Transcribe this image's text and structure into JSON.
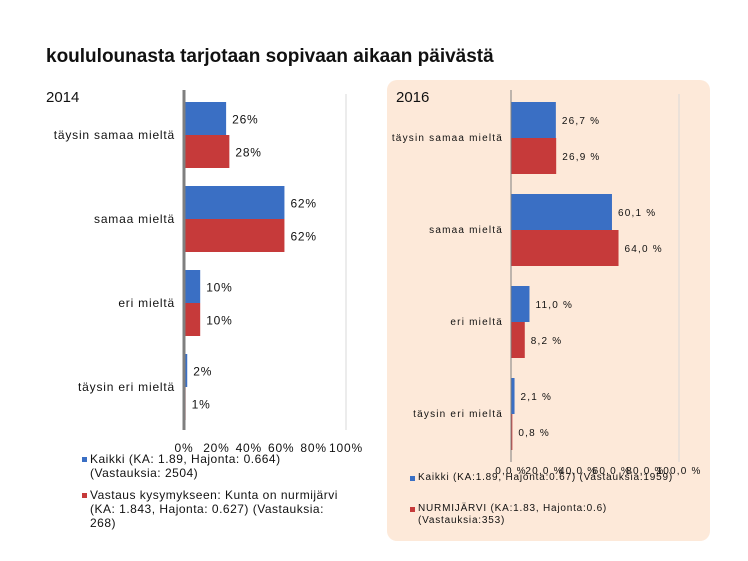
{
  "title": "koululounasta tarjotaan sopivaan aikaan päivästä",
  "colors": {
    "series1": "#3a6fc4",
    "series2": "#c63a3a",
    "panel_bg": "#fde9d9",
    "axis": "#7f7f7f",
    "grid": "#d9d9d9"
  },
  "chart_data": [
    {
      "type": "bar",
      "orientation": "horizontal",
      "title": "2014",
      "categories": [
        "täysin samaa mieltä",
        "samaa mieltä",
        "eri mieltä",
        "täysin eri mieltä"
      ],
      "series": [
        {
          "name": "Kaikki (KA: 1.89, Hajonta: 0.664) (Vastauksia: 2504)",
          "values": [
            26,
            62,
            10,
            2
          ],
          "labels": [
            "26%",
            "62%",
            "10%",
            "2%"
          ]
        },
        {
          "name": "Vastaus kysymykseen: Kunta on nurmijärvi (KA: 1.843, Hajonta: 0.627) (Vastauksia: 268)",
          "values": [
            28,
            62,
            10,
            1
          ],
          "labels": [
            "28%",
            "62%",
            "10%",
            "1%"
          ]
        }
      ],
      "xticks": [
        "0%",
        "20%",
        "40%",
        "60%",
        "80%",
        "100%"
      ],
      "xlim": [
        0,
        100
      ],
      "legend": "bottom"
    },
    {
      "type": "bar",
      "orientation": "horizontal",
      "title": "2016",
      "categories": [
        "täysin samaa mieltä",
        "samaa mieltä",
        "eri mieltä",
        "täysin eri mieltä"
      ],
      "series": [
        {
          "name": "Kaikki (KA:1.89, Hajonta:0.67) (Vastauksia:1959)",
          "values": [
            26.7,
            60.1,
            11.0,
            2.1
          ],
          "labels": [
            "26,7 %",
            "60,1 %",
            "11,0 %",
            "2,1 %"
          ]
        },
        {
          "name": "NURMIJÄRVI (KA:1.83, Hajonta:0.6) (Vastauksia:353)",
          "values": [
            26.9,
            64.0,
            8.2,
            0.8
          ],
          "labels": [
            "26,9 %",
            "64,0 %",
            "8,2 %",
            "0,8 %"
          ]
        }
      ],
      "xticks": [
        "0,0 %",
        "20,0 %",
        "40,0 %",
        "60,0 %",
        "80,0 %",
        "100,0 %"
      ],
      "xlim": [
        0,
        100
      ],
      "legend": "bottom"
    }
  ]
}
